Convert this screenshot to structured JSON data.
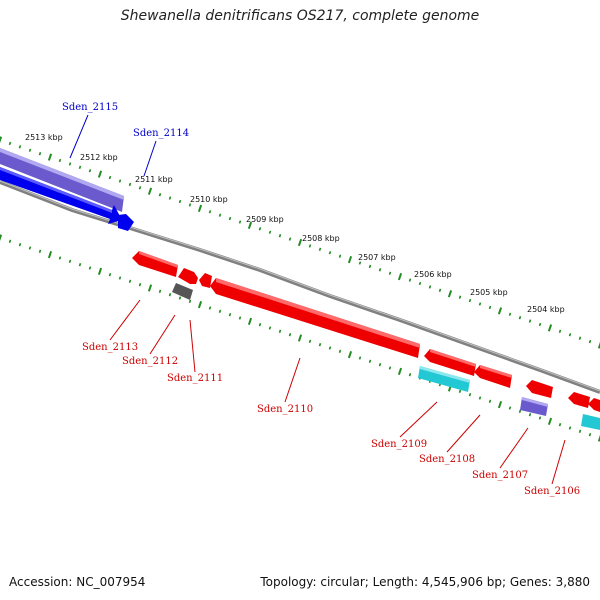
{
  "title": "Shewanella denitrificans OS217, complete genome",
  "footer": {
    "accession": "Accession: NC_007954",
    "summary": "Topology: circular; Length: 4,545,906 bp; Genes: 3,880"
  },
  "colors": {
    "forward_rna": "#3030cc",
    "forward_gene": "#0000ee",
    "reverse_gene": "#ee0000",
    "cyan_gene": "#22c8d4",
    "purple_gene": "#6a5acd",
    "gray_gene": "#555555",
    "tick": "#228b22",
    "backbone": "#808080",
    "label_forward": "#0000cc",
    "label_reverse": "#cc0000"
  },
  "scale_labels": [
    "2513 kbp",
    "2512 kbp",
    "2511 kbp",
    "2510 kbp",
    "2509 kbp",
    "2508 kbp",
    "2507 kbp",
    "2506 kbp",
    "2505 kbp",
    "2504 kbp"
  ],
  "genes": [
    {
      "name": "Sden_2115",
      "strand": "forward",
      "color": "purple"
    },
    {
      "name": "Sden_2114",
      "strand": "forward",
      "color": "blue"
    },
    {
      "name": "Sden_2113",
      "strand": "reverse",
      "color": "red"
    },
    {
      "name": "Sden_2112",
      "strand": "reverse",
      "color": "gray"
    },
    {
      "name": "Sden_2111",
      "strand": "reverse",
      "color": "red"
    },
    {
      "name": "Sden_2110",
      "strand": "reverse",
      "color": "red"
    },
    {
      "name": "Sden_2109",
      "strand": "reverse",
      "color": "cyan"
    },
    {
      "name": "Sden_2108",
      "strand": "reverse",
      "color": "red"
    },
    {
      "name": "Sden_2107",
      "strand": "reverse",
      "color": "purple"
    },
    {
      "name": "Sden_2106",
      "strand": "reverse",
      "color": "red"
    }
  ]
}
